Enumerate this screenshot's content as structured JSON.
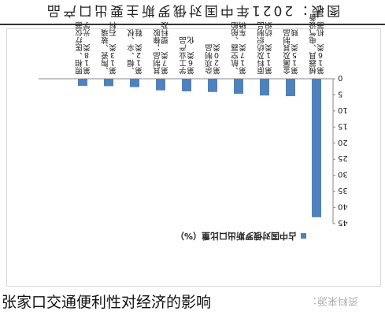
{
  "figure": {
    "title": "图表：2021年中国对俄罗斯主要出口产品"
  },
  "caption": {
    "main": "张家口交通便利性对经济的影响",
    "source": "资料来源："
  },
  "colors": {
    "bar": "#4f81bd",
    "axis": "#888888",
    "text": "#222222"
  },
  "chart_data": {
    "type": "bar",
    "orientation": "vertical",
    "rotated_180": true,
    "title": "占中国对俄罗斯出口比重（%）",
    "legend": "占中国对俄罗斯出口比重",
    "legend_position": "top-right",
    "ylim": [
      0,
      45
    ],
    "ytick_step": 5,
    "grid": false,
    "categories": [
      "第16类 机器、机械器具、电气设备",
      "第15类 贱金属及其制品",
      "第11类 纺织原料及纺织制品",
      "第17类 车辆、航空器、船舶",
      "第20类 杂项制品",
      "第6类 化学工业产品",
      "第7类 塑料及其制品；橡胶",
      "第12类 鞋、帽、伞、杖",
      "第13类 石料、陶瓷、玻璃",
      "第18类 光学、照相、医疗仪器"
    ],
    "values": [
      43.0,
      5.4,
      5.2,
      4.7,
      4.1,
      3.9,
      3.6,
      2.6,
      2.3,
      2.2
    ]
  }
}
